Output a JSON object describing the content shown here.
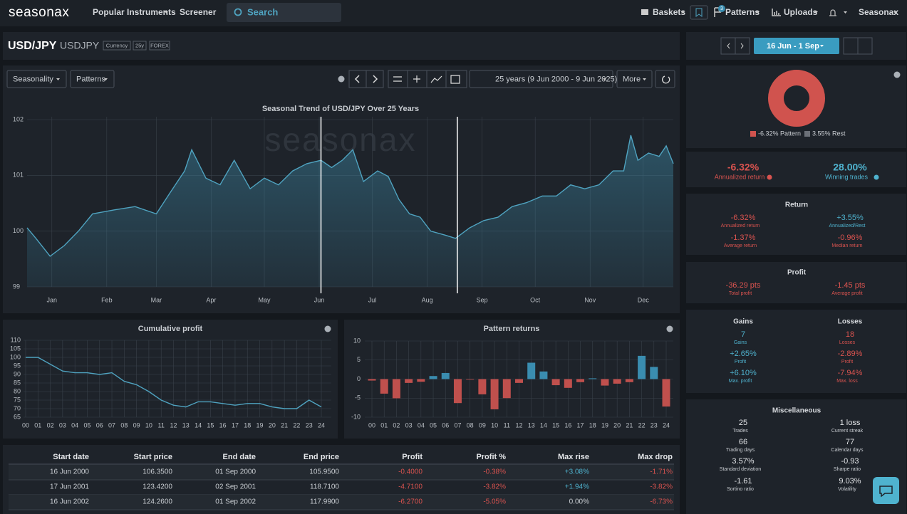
{
  "nav": {
    "logo": "seasonax",
    "items": [
      "Popular Instruments",
      "Screener"
    ],
    "search": "Search",
    "right": [
      "Baskets",
      "Patterns",
      "Uploads",
      "Seasonax"
    ],
    "badge": "3"
  },
  "header": {
    "symbol": "USD/JPY",
    "ticker": "USDJPY",
    "tags": [
      "Currency",
      "25y",
      "FOREX"
    ],
    "range": "16 Jun - 1 Sep"
  },
  "toolbar": {
    "seasonality": "Seasonality",
    "patterns": "Patterns",
    "period": "25 years (9 Jun 2000 - 9 Jun 2025)",
    "more": "More"
  },
  "chart_data": [
    {
      "type": "line",
      "title": "Seasonal Trend of USD/JPY Over 25 Years",
      "watermark": "seasonax",
      "color": "#4fa3c0",
      "grid": true,
      "x": [
        1,
        6,
        14,
        22,
        30,
        38,
        50,
        62,
        74,
        82,
        90,
        94,
        102,
        110,
        118,
        127,
        135,
        143,
        151,
        159,
        167,
        173,
        179,
        185,
        191,
        199,
        205,
        211,
        217,
        223,
        229,
        237,
        243,
        251,
        259,
        267,
        275,
        283,
        292,
        300,
        308,
        316,
        324,
        332,
        338,
        342,
        346,
        352,
        358,
        362,
        366
      ],
      "values": [
        100.06,
        99.87,
        99.55,
        99.74,
        100.0,
        100.31,
        100.38,
        100.44,
        100.31,
        100.7,
        101.08,
        101.46,
        100.95,
        100.83,
        101.27,
        100.76,
        100.95,
        100.83,
        101.08,
        101.21,
        101.27,
        101.14,
        101.27,
        101.46,
        100.89,
        101.08,
        100.98,
        100.57,
        100.31,
        100.25,
        100.0,
        99.93,
        99.87,
        100.06,
        100.19,
        100.25,
        100.44,
        100.51,
        100.63,
        100.63,
        100.83,
        100.76,
        100.83,
        101.08,
        101.08,
        101.72,
        101.27,
        101.4,
        101.34,
        101.53,
        101.21
      ],
      "xlim": [
        1,
        366
      ],
      "ylim": [
        99,
        102
      ],
      "yticks": [
        99,
        100,
        101,
        102
      ],
      "xticks": [
        {
          "value": 15,
          "label": "Jan"
        },
        {
          "value": 46,
          "label": "Feb"
        },
        {
          "value": 74,
          "label": "Mar"
        },
        {
          "value": 105,
          "label": "Apr"
        },
        {
          "value": 135,
          "label": "May"
        },
        {
          "value": 166,
          "label": "Jun"
        },
        {
          "value": 196,
          "label": "Jul"
        },
        {
          "value": 227,
          "label": "Aug"
        },
        {
          "value": 258,
          "label": "Sep"
        },
        {
          "value": 288,
          "label": "Oct"
        },
        {
          "value": 319,
          "label": "Nov"
        },
        {
          "value": 349,
          "label": "Dec"
        }
      ],
      "highlight": [
        167,
        244
      ]
    },
    {
      "type": "line",
      "title": "Cumulative profit",
      "color": "#4fa3c0",
      "grid": true,
      "categories": [
        "00",
        "01",
        "02",
        "03",
        "04",
        "05",
        "06",
        "07",
        "08",
        "09",
        "10",
        "11",
        "12",
        "13",
        "14",
        "15",
        "16",
        "17",
        "18",
        "19",
        "20",
        "21",
        "22",
        "23",
        "24"
      ],
      "values": [
        100,
        100,
        96,
        92,
        91,
        91,
        90,
        91,
        86,
        84,
        80,
        75,
        72,
        71,
        74,
        74,
        73,
        72,
        73,
        73,
        71,
        70,
        70,
        75,
        71
      ],
      "ylim": [
        65,
        110
      ],
      "yticks": [
        65,
        70,
        75,
        80,
        85,
        90,
        95,
        100,
        105,
        110
      ]
    },
    {
      "type": "bar",
      "title": "Pattern returns",
      "colors": {
        "positive": "#3a8db0",
        "negative": "#c0504d"
      },
      "grid": true,
      "categories": [
        "00",
        "01",
        "02",
        "03",
        "04",
        "05",
        "06",
        "07",
        "08",
        "09",
        "10",
        "11",
        "12",
        "13",
        "14",
        "15",
        "16",
        "17",
        "18",
        "19",
        "20",
        "21",
        "22",
        "23",
        "24"
      ],
      "values": [
        -0.38,
        -3.82,
        -5.05,
        -1.0,
        -0.7,
        0.8,
        1.6,
        -6.3,
        -0.1,
        -4.0,
        -7.94,
        -5.0,
        -1.0,
        4.3,
        2.0,
        -1.6,
        -2.3,
        -0.8,
        0.2,
        -1.7,
        -1.2,
        -0.8,
        6.1,
        3.2,
        -7.2
      ],
      "ylim": [
        -10,
        10
      ],
      "yticks": [
        -10,
        -5,
        0,
        5,
        10
      ]
    },
    {
      "type": "pie",
      "categories": [
        "Pattern",
        "Rest"
      ],
      "values": [
        -6.32,
        3.55
      ],
      "value_labels": [
        "-6.32%",
        "3.55%"
      ],
      "colors": [
        "#d0534e",
        "#6b7078"
      ]
    }
  ],
  "summary": [
    {
      "value": "-6.32%",
      "label": "Annualized return"
    },
    {
      "value": "28.00%",
      "label": "Winning trades"
    }
  ],
  "stats": [
    {
      "title": "Return",
      "items": [
        {
          "value": "-6.32%",
          "label": "Annualized return"
        },
        {
          "value": "+3.55%",
          "label": "Annualized/Rest"
        },
        {
          "value": "-1.37%",
          "label": "Average return"
        },
        {
          "value": "-0.96%",
          "label": "Median return"
        }
      ]
    },
    {
      "title": "Profit",
      "items": [
        {
          "value": "-36.29 pts",
          "label": "Total profit"
        },
        {
          "value": "-1.45 pts",
          "label": "Average profit"
        }
      ]
    },
    {
      "headers": [
        "Gains",
        "Losses"
      ],
      "items": [
        {
          "value": "7",
          "label": "Gains"
        },
        {
          "value": "18",
          "label": "Losses"
        },
        {
          "value": "+2.65%",
          "label": "Profit"
        },
        {
          "value": "-2.89%",
          "label": "Profit"
        },
        {
          "value": "+6.10%",
          "label": "Max. profit"
        },
        {
          "value": "-7.94%",
          "label": "Max. loss"
        }
      ]
    },
    {
      "title": "Miscellaneous",
      "items": [
        {
          "value": "25",
          "label": "Trades"
        },
        {
          "value": "1 loss",
          "label": "Current streak"
        },
        {
          "value": "66",
          "label": "Trading days"
        },
        {
          "value": "77",
          "label": "Calendar days"
        },
        {
          "value": "3.57%",
          "label": "Standard deviation"
        },
        {
          "value": "-0.93",
          "label": "Sharpe ratio"
        },
        {
          "value": "-1.61",
          "label": "Sortino ratio"
        },
        {
          "value": "9.03%",
          "label": "Volatility"
        }
      ]
    }
  ],
  "table": {
    "columns": [
      "Start date",
      "Start price",
      "End date",
      "End price",
      "Profit",
      "Profit %",
      "Max rise",
      "Max drop"
    ],
    "rows": [
      [
        "16 Jun 2000",
        "106.3500",
        "01 Sep 2000",
        "105.9500",
        "-0.4000",
        "-0.38%",
        "+3.08%",
        "-1.71%"
      ],
      [
        "17 Jun 2001",
        "123.4200",
        "02 Sep 2001",
        "118.7100",
        "-4.7100",
        "-3.82%",
        "+1.94%",
        "-3.82%"
      ],
      [
        "16 Jun 2002",
        "124.2600",
        "01 Sep 2002",
        "117.9900",
        "-6.2700",
        "-5.05%",
        "0.00%",
        "-6.73%"
      ]
    ]
  }
}
